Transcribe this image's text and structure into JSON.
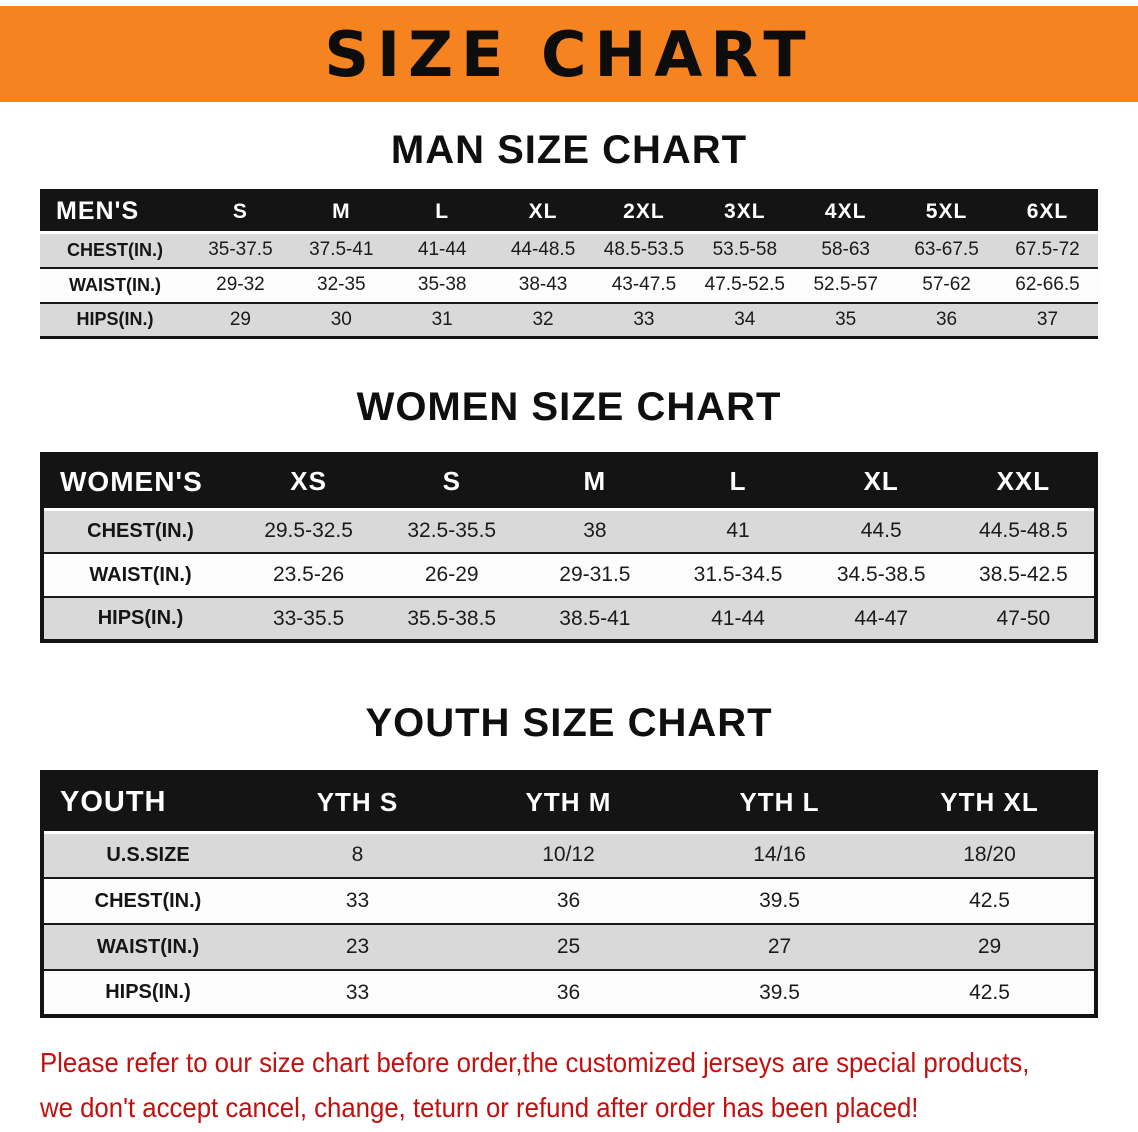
{
  "banner": {
    "title": "SIZE CHART",
    "bg_color": "#f5831f"
  },
  "sections": [
    {
      "heading": "MAN SIZE CHART",
      "table": {
        "header": [
          "MEN'S",
          "S",
          "M",
          "L",
          "XL",
          "2XL",
          "3XL",
          "4XL",
          "5XL",
          "6XL"
        ],
        "rows": [
          [
            "CHEST(IN.)",
            "35-37.5",
            "37.5-41",
            "41-44",
            "44-48.5",
            "48.5-53.5",
            "53.5-58",
            "58-63",
            "63-67.5",
            "67.5-72"
          ],
          [
            "WAIST(IN.)",
            "29-32",
            "32-35",
            "35-38",
            "38-43",
            "43-47.5",
            "47.5-52.5",
            "52.5-57",
            "57-62",
            "62-66.5"
          ],
          [
            "HIPS(IN.)",
            "29",
            "30",
            "31",
            "32",
            "33",
            "34",
            "35",
            "36",
            "37"
          ]
        ]
      }
    },
    {
      "heading": "WOMEN SIZE CHART",
      "table": {
        "header": [
          "WOMEN'S",
          "XS",
          "S",
          "M",
          "L",
          "XL",
          "XXL"
        ],
        "rows": [
          [
            "CHEST(IN.)",
            "29.5-32.5",
            "32.5-35.5",
            "38",
            "41",
            "44.5",
            "44.5-48.5"
          ],
          [
            "WAIST(IN.)",
            "23.5-26",
            "26-29",
            "29-31.5",
            "31.5-34.5",
            "34.5-38.5",
            "38.5-42.5"
          ],
          [
            "HIPS(IN.)",
            "33-35.5",
            "35.5-38.5",
            "38.5-41",
            "41-44",
            "44-47",
            "47-50"
          ]
        ]
      }
    },
    {
      "heading": "YOUTH SIZE CHART",
      "table": {
        "header": [
          "YOUTH",
          "YTH S",
          "YTH M",
          "YTH L",
          "YTH XL"
        ],
        "rows": [
          [
            "U.S.SIZE",
            "8",
            "10/12",
            "14/16",
            "18/20"
          ],
          [
            "CHEST(IN.)",
            "33",
            "36",
            "39.5",
            "42.5"
          ],
          [
            "WAIST(IN.)",
            "23",
            "25",
            "27",
            "29"
          ],
          [
            "HIPS(IN.)",
            "33",
            "36",
            "39.5",
            "42.5"
          ]
        ]
      }
    }
  ],
  "footer": {
    "line1": "Please refer to our size chart before order,the customized jerseys are special products,",
    "line2": "we don't accept cancel, change, teturn or refund after order has been placed!",
    "color": "#c40f0f"
  },
  "colors": {
    "banner_orange": "#f5831f",
    "table_header_black": "#141414",
    "row_shade_gray": "#d9d9d9",
    "footer_red": "#c40f0f"
  }
}
